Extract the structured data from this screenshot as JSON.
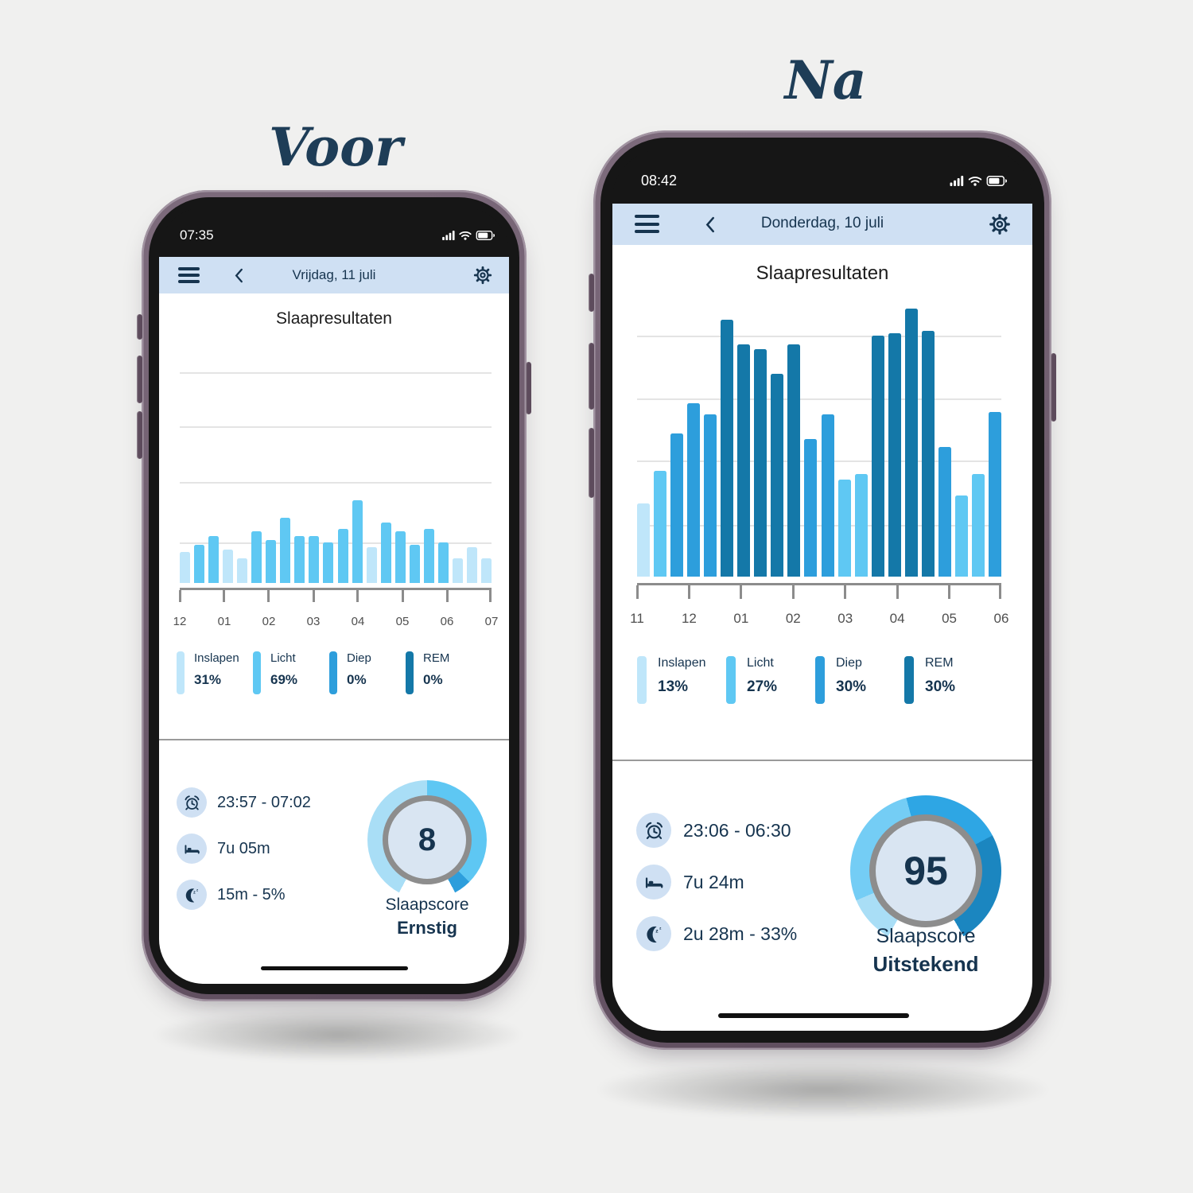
{
  "labels": {
    "before": "Voor",
    "after": "Na"
  },
  "palette": {
    "inslapen": "#bfe6fa",
    "licht": "#5fc8f3",
    "diep": "#2d9edc",
    "rem": "#1478a8"
  },
  "colors": {
    "header_bg": "#cfe0f3",
    "text_navy": "#16344f",
    "gauge_inner": "#d9e5f2"
  },
  "before": {
    "status_time": "07:35",
    "nav_date": "Vrijdag, 11 juli",
    "page_title": "Slaapresultaten",
    "chart_data": {
      "type": "bar",
      "title": "Slaapresultaten",
      "x_ticks": [
        "12",
        "01",
        "02",
        "03",
        "04",
        "05",
        "06",
        "07"
      ],
      "ylabel": "",
      "unit": "bar height as % of plot height",
      "values": [
        14,
        17,
        21,
        15,
        11,
        23,
        19,
        29,
        21,
        21,
        18,
        24,
        37,
        16,
        27,
        23,
        17,
        24,
        18,
        11,
        16,
        11
      ],
      "stages": [
        "inslapen",
        "licht",
        "licht",
        "inslapen",
        "inslapen",
        "licht",
        "licht",
        "licht",
        "licht",
        "licht",
        "licht",
        "licht",
        "licht",
        "inslapen",
        "licht",
        "licht",
        "licht",
        "licht",
        "licht",
        "inslapen",
        "inslapen",
        "inslapen"
      ],
      "gridlines_pct": [
        6,
        30,
        55,
        82
      ],
      "legend_position": "below"
    },
    "legend": [
      {
        "label": "Inslapen",
        "value": "31%",
        "stage": "inslapen"
      },
      {
        "label": "Licht",
        "value": "69%",
        "stage": "licht"
      },
      {
        "label": "Diep",
        "value": "0%",
        "stage": "diep"
      },
      {
        "label": "REM",
        "value": "0%",
        "stage": "rem"
      }
    ],
    "stats": [
      {
        "icon": "alarm-icon",
        "text": "23:57 - 07:02"
      },
      {
        "icon": "bed-icon",
        "text": "7u 05m"
      },
      {
        "icon": "moon-icon",
        "text": "15m - 5%"
      }
    ],
    "score": {
      "value": "8",
      "label": "Slaapscore",
      "rating": "Ernstig",
      "ring": [
        {
          "from": 0,
          "to": 135,
          "color": "#5ec7f3"
        },
        {
          "from": 135,
          "to": 152,
          "color": "#2d9edc"
        },
        {
          "from": 152,
          "to": 208,
          "color": "#ffffff"
        },
        {
          "from": 208,
          "to": 360,
          "color": "#a9def6"
        }
      ]
    }
  },
  "after": {
    "status_time": "08:42",
    "nav_date": "Donderdag, 10 juli",
    "page_title": "Slaapresultaten",
    "chart_data": {
      "type": "bar",
      "title": "Slaapresultaten",
      "x_ticks": [
        "11",
        "12",
        "01",
        "02",
        "03",
        "04",
        "05",
        "06"
      ],
      "ylabel": "",
      "unit": "bar height as % of plot height",
      "values": [
        27,
        39,
        53,
        64,
        60,
        95,
        86,
        84,
        75,
        86,
        51,
        60,
        36,
        38,
        89,
        90,
        99,
        91,
        48,
        30,
        38,
        61
      ],
      "stages": [
        "inslapen",
        "licht",
        "diep",
        "diep",
        "diep",
        "rem",
        "rem",
        "rem",
        "rem",
        "rem",
        "diep",
        "diep",
        "licht",
        "licht",
        "rem",
        "rem",
        "rem",
        "rem",
        "diep",
        "licht",
        "licht",
        "diep"
      ],
      "gridlines_pct": [
        11,
        34,
        57,
        81
      ],
      "legend_position": "below"
    },
    "legend": [
      {
        "label": "Inslapen",
        "value": "13%",
        "stage": "inslapen"
      },
      {
        "label": "Licht",
        "value": "27%",
        "stage": "licht"
      },
      {
        "label": "Diep",
        "value": "30%",
        "stage": "diep"
      },
      {
        "label": "REM",
        "value": "30%",
        "stage": "rem"
      }
    ],
    "stats": [
      {
        "icon": "alarm-icon",
        "text": "23:06 - 06:30"
      },
      {
        "icon": "bed-icon",
        "text": "7u 24m"
      },
      {
        "icon": "moon-icon",
        "text": "2u 28m - 33%"
      }
    ],
    "score": {
      "value": "95",
      "label": "Slaapscore",
      "rating": "Uitstekend",
      "ring": [
        {
          "from": 0,
          "to": 62,
          "color": "#2ea6e4"
        },
        {
          "from": 62,
          "to": 150,
          "color": "#1b86c0"
        },
        {
          "from": 150,
          "to": 210,
          "color": "#ffffff"
        },
        {
          "from": 210,
          "to": 247,
          "color": "#a9def6"
        },
        {
          "from": 247,
          "to": 345,
          "color": "#74cdf5"
        },
        {
          "from": 345,
          "to": 360,
          "color": "#2ea6e4"
        }
      ]
    }
  }
}
